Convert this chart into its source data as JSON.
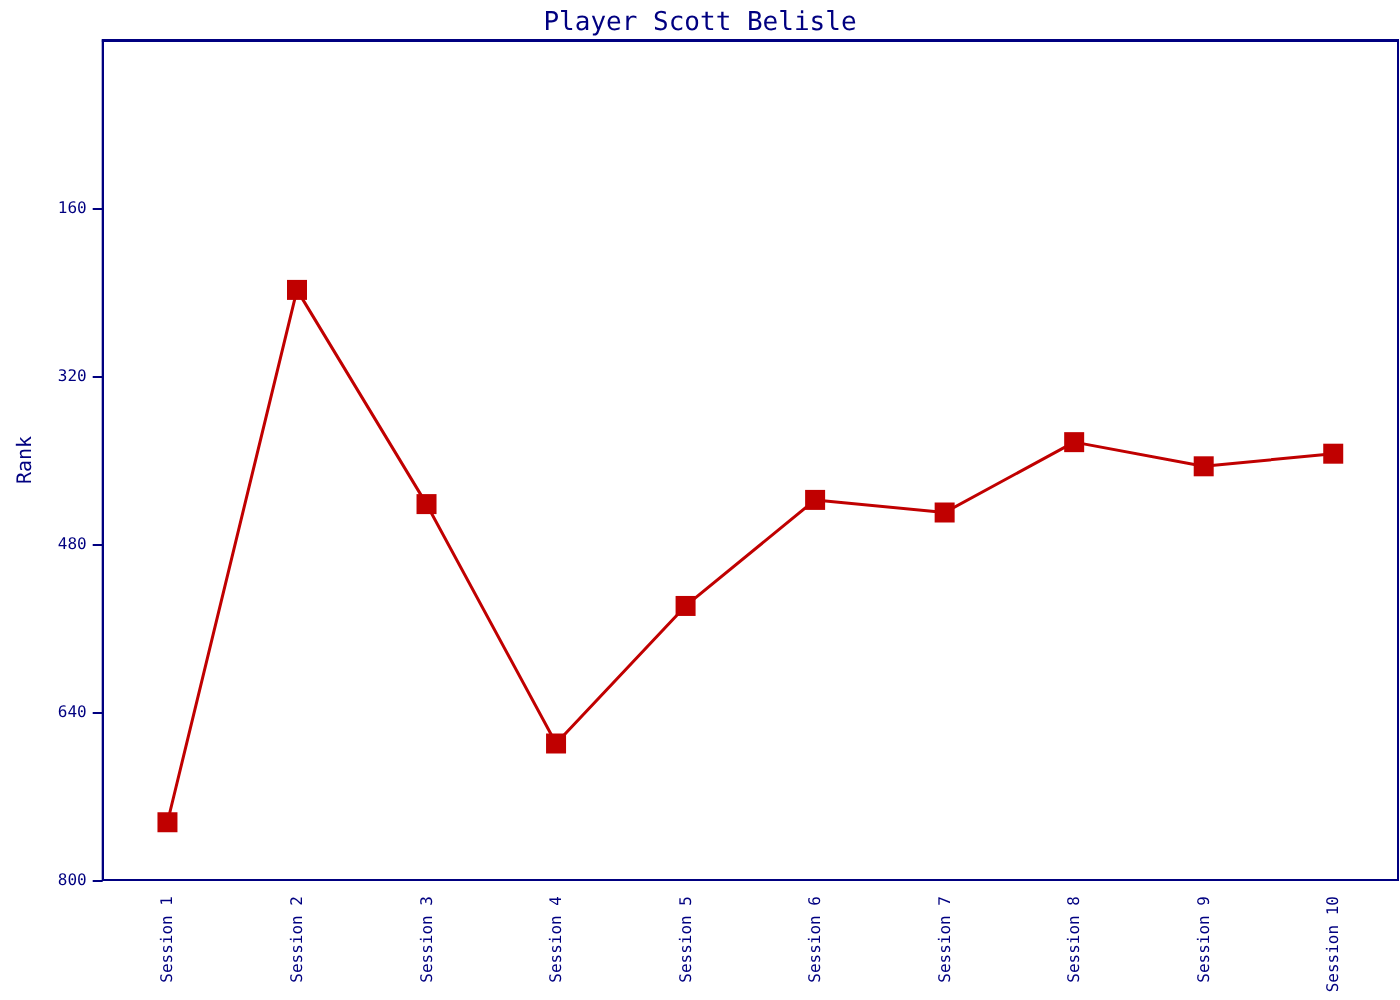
{
  "chart_data": {
    "type": "line",
    "title": "Player Scott Belisle",
    "ylabel": "Rank",
    "categories": [
      "Session 1",
      "Session 2",
      "Session 3",
      "Session 4",
      "Session 5",
      "Session 6",
      "Session 7",
      "Session 8",
      "Session 9",
      "Session 10"
    ],
    "series": [
      {
        "color": "#c00000",
        "values": [
          745,
          238,
          442,
          670,
          539,
          438,
          450,
          383,
          406,
          394
        ]
      }
    ],
    "ylim": [
      800,
      0
    ],
    "yticks": [
      160,
      320,
      480,
      640,
      800
    ],
    "grid": false,
    "marker": "square",
    "line_style": "solid"
  }
}
